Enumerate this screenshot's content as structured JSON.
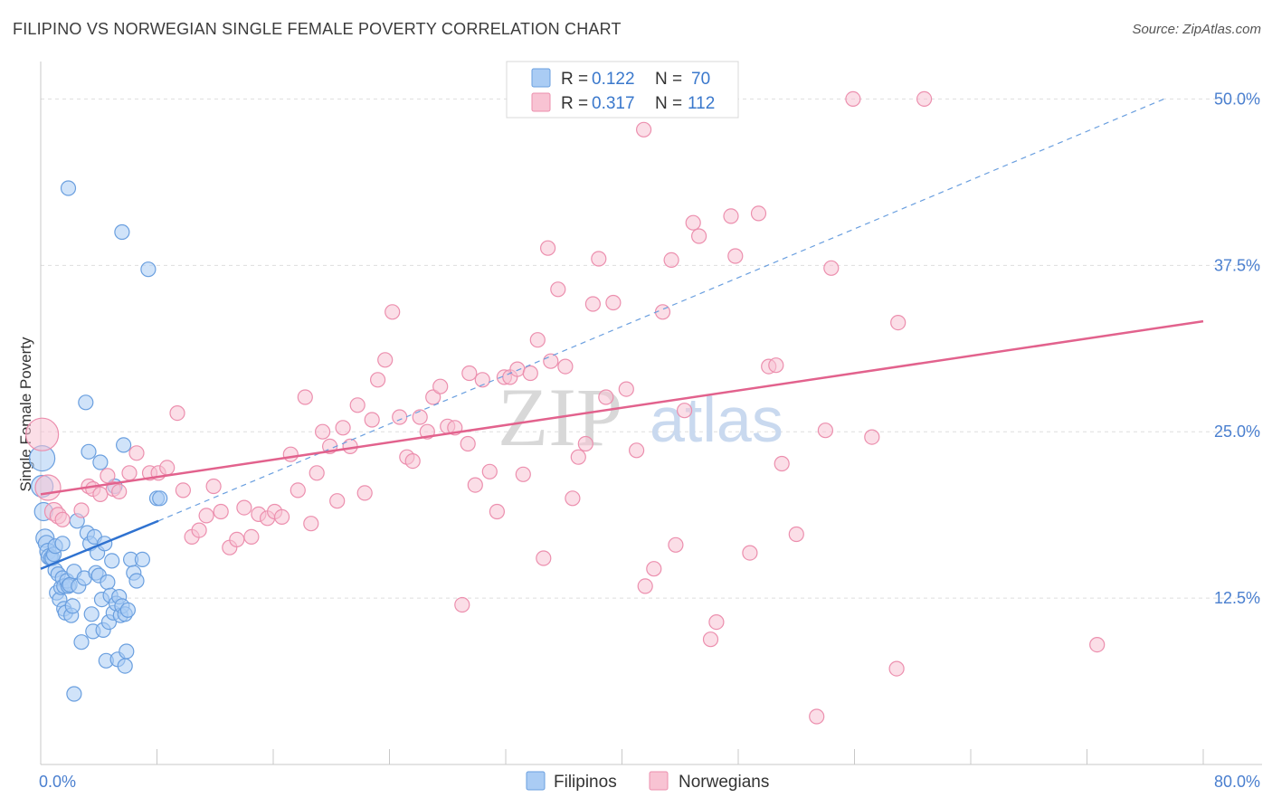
{
  "title": "FILIPINO VS NORWEGIAN SINGLE FEMALE POVERTY CORRELATION CHART",
  "source": "Source: ZipAtlas.com",
  "watermark": {
    "zip": "ZIP",
    "atlas": "atlas"
  },
  "legend": {
    "r_label": "R =",
    "n_label": "N =",
    "rows": [
      {
        "series": "Filipinos",
        "r": "0.122",
        "n": "70",
        "color": "#7aaae8"
      },
      {
        "series": "Norwegians",
        "r": "0.317",
        "n": "112",
        "color": "#f08aaa"
      }
    ]
  },
  "colors": {
    "filipinos_fill": "#aaccf4",
    "filipinos_stroke": "#6a9fdf",
    "filipinos_line": "#2f72d0",
    "norwegians_fill": "#f8c3d3",
    "norwegians_stroke": "#ec8fae",
    "norwegians_line": "#e2628d",
    "tick_text": "#4a7fcf"
  },
  "chart_data": {
    "type": "scatter",
    "title": "FILIPINO VS NORWEGIAN SINGLE FEMALE POVERTY CORRELATION CHART",
    "xlabel": "",
    "ylabel": "Single Female Poverty",
    "xlim": [
      0,
      80
    ],
    "ylim": [
      0,
      52
    ],
    "x_tick_labels": [
      {
        "value": 0,
        "label": "0.0%"
      },
      {
        "value": 80,
        "label": "80.0%"
      }
    ],
    "y_tick_labels": [
      {
        "value": 12.5,
        "label": "12.5%"
      },
      {
        "value": 25,
        "label": "25.0%"
      },
      {
        "value": 37.5,
        "label": "37.5%"
      },
      {
        "value": 50,
        "label": "50.0%"
      }
    ],
    "grid": "horizontal dashed",
    "legend_position": "top-center",
    "series": [
      {
        "name": "Filipinos",
        "r": 0.122,
        "n": 70,
        "trend": {
          "x": [
            0,
            8.1
          ],
          "y": [
            14.7,
            18.3
          ],
          "extended_dashed": {
            "x": [
              8.1,
              77.3
            ],
            "y": [
              18.3,
              50
            ]
          }
        },
        "points": [
          [
            0.1,
            20.9,
            12
          ],
          [
            0.1,
            23.0,
            14
          ],
          [
            0.2,
            19.0,
            10
          ],
          [
            0.3,
            17.0,
            10
          ],
          [
            0.4,
            16.6,
            9
          ],
          [
            0.5,
            16.0,
            9
          ],
          [
            0.6,
            15.6,
            9
          ],
          [
            0.7,
            15.5,
            8
          ],
          [
            0.8,
            15.5,
            8
          ],
          [
            0.9,
            15.8,
            8
          ],
          [
            1.0,
            16.4,
            8
          ],
          [
            1.0,
            14.6,
            8
          ],
          [
            1.1,
            12.9,
            8
          ],
          [
            1.2,
            14.3,
            8
          ],
          [
            1.3,
            12.4,
            8
          ],
          [
            1.4,
            13.3,
            8
          ],
          [
            1.5,
            14.0,
            8
          ],
          [
            1.5,
            16.6,
            8
          ],
          [
            1.6,
            11.7,
            8
          ],
          [
            1.6,
            13.4,
            8
          ],
          [
            1.7,
            11.4,
            8
          ],
          [
            1.8,
            13.8,
            8
          ],
          [
            1.9,
            13.4,
            8
          ],
          [
            2.0,
            13.5,
            8
          ],
          [
            2.1,
            11.2,
            8
          ],
          [
            2.2,
            11.9,
            8
          ],
          [
            2.3,
            14.5,
            8
          ],
          [
            2.5,
            18.3,
            8
          ],
          [
            2.6,
            13.4,
            8
          ],
          [
            2.8,
            9.2,
            8
          ],
          [
            3.0,
            14.0,
            8
          ],
          [
            3.1,
            27.2,
            8
          ],
          [
            3.2,
            17.4,
            8
          ],
          [
            3.3,
            23.5,
            8
          ],
          [
            3.4,
            16.6,
            8
          ],
          [
            3.5,
            11.3,
            8
          ],
          [
            3.6,
            10.0,
            8
          ],
          [
            3.7,
            17.1,
            8
          ],
          [
            3.8,
            14.4,
            8
          ],
          [
            3.9,
            15.9,
            8
          ],
          [
            4.0,
            14.2,
            8
          ],
          [
            4.1,
            22.7,
            8
          ],
          [
            4.2,
            12.4,
            8
          ],
          [
            4.3,
            10.1,
            8
          ],
          [
            4.4,
            16.6,
            8
          ],
          [
            4.5,
            7.8,
            8
          ],
          [
            4.6,
            13.7,
            8
          ],
          [
            4.7,
            10.7,
            8
          ],
          [
            4.8,
            12.7,
            8
          ],
          [
            4.9,
            15.3,
            8
          ],
          [
            5.0,
            11.4,
            8
          ],
          [
            5.1,
            20.9,
            8
          ],
          [
            5.2,
            12.1,
            8
          ],
          [
            5.3,
            7.9,
            8
          ],
          [
            5.4,
            12.6,
            8
          ],
          [
            5.5,
            11.2,
            8
          ],
          [
            5.6,
            11.9,
            8
          ],
          [
            5.7,
            24.0,
            8
          ],
          [
            5.8,
            11.3,
            8
          ],
          [
            5.9,
            8.5,
            8
          ],
          [
            6.0,
            11.6,
            8
          ],
          [
            6.2,
            15.4,
            8
          ],
          [
            6.4,
            14.4,
            8
          ],
          [
            6.6,
            13.8,
            8
          ],
          [
            7.0,
            15.4,
            8
          ],
          [
            7.4,
            37.2,
            8
          ],
          [
            8.0,
            20.0,
            8
          ],
          [
            8.2,
            20.0,
            8
          ],
          [
            5.8,
            7.4,
            8
          ],
          [
            2.3,
            5.3,
            8
          ],
          [
            1.9,
            43.3,
            8
          ],
          [
            5.6,
            40.0,
            8
          ]
        ]
      },
      {
        "name": "Norwegians",
        "r": 0.317,
        "n": 112,
        "trend": {
          "x": [
            0,
            80
          ],
          "y": [
            20.3,
            33.3
          ]
        },
        "points": [
          [
            0.1,
            24.8,
            18
          ],
          [
            0.5,
            20.8,
            14
          ],
          [
            0.9,
            19.0,
            10
          ],
          [
            1.2,
            18.7,
            9
          ],
          [
            1.5,
            18.4,
            8
          ],
          [
            2.8,
            19.1,
            8
          ],
          [
            3.3,
            20.9,
            8
          ],
          [
            3.6,
            20.7,
            8
          ],
          [
            4.1,
            20.3,
            8
          ],
          [
            4.6,
            21.7,
            8
          ],
          [
            5.0,
            20.7,
            8
          ],
          [
            5.4,
            20.5,
            8
          ],
          [
            6.1,
            21.9,
            8
          ],
          [
            6.6,
            23.4,
            8
          ],
          [
            7.5,
            21.9,
            8
          ],
          [
            8.1,
            21.9,
            8
          ],
          [
            8.7,
            22.3,
            8
          ],
          [
            9.4,
            26.4,
            8
          ],
          [
            9.8,
            20.6,
            8
          ],
          [
            10.4,
            17.1,
            8
          ],
          [
            10.9,
            17.6,
            8
          ],
          [
            11.4,
            18.7,
            8
          ],
          [
            11.9,
            20.9,
            8
          ],
          [
            12.4,
            19.0,
            8
          ],
          [
            13.0,
            16.3,
            8
          ],
          [
            13.5,
            16.9,
            8
          ],
          [
            14.0,
            19.3,
            8
          ],
          [
            14.5,
            17.1,
            8
          ],
          [
            15.0,
            18.8,
            8
          ],
          [
            15.6,
            18.5,
            8
          ],
          [
            16.1,
            19.0,
            8
          ],
          [
            16.6,
            18.6,
            8
          ],
          [
            17.2,
            23.3,
            8
          ],
          [
            17.7,
            20.6,
            8
          ],
          [
            18.2,
            27.6,
            8
          ],
          [
            18.6,
            18.1,
            8
          ],
          [
            19.0,
            21.9,
            8
          ],
          [
            19.4,
            25.0,
            8
          ],
          [
            19.9,
            23.9,
            8
          ],
          [
            20.4,
            19.8,
            8
          ],
          [
            20.8,
            25.3,
            8
          ],
          [
            21.3,
            23.9,
            8
          ],
          [
            21.8,
            27.0,
            8
          ],
          [
            22.3,
            20.4,
            8
          ],
          [
            22.8,
            25.9,
            8
          ],
          [
            23.2,
            28.9,
            8
          ],
          [
            23.7,
            30.4,
            8
          ],
          [
            24.2,
            34.0,
            8
          ],
          [
            24.7,
            26.1,
            8
          ],
          [
            25.2,
            23.1,
            8
          ],
          [
            25.6,
            22.8,
            8
          ],
          [
            26.1,
            26.1,
            8
          ],
          [
            26.6,
            25.0,
            8
          ],
          [
            27.0,
            27.6,
            8
          ],
          [
            27.5,
            28.4,
            8
          ],
          [
            28.0,
            25.4,
            8
          ],
          [
            28.5,
            25.3,
            8
          ],
          [
            29.0,
            12.0,
            8
          ],
          [
            29.4,
            24.1,
            8
          ],
          [
            29.9,
            21.0,
            8
          ],
          [
            30.4,
            28.9,
            8
          ],
          [
            30.9,
            22.0,
            8
          ],
          [
            31.4,
            19.0,
            8
          ],
          [
            31.9,
            29.1,
            8
          ],
          [
            32.3,
            29.1,
            8
          ],
          [
            32.8,
            29.7,
            8
          ],
          [
            33.2,
            21.8,
            8
          ],
          [
            33.7,
            29.4,
            8
          ],
          [
            34.2,
            31.9,
            8
          ],
          [
            34.6,
            15.5,
            8
          ],
          [
            35.1,
            30.3,
            8
          ],
          [
            35.6,
            35.7,
            8
          ],
          [
            36.1,
            29.9,
            8
          ],
          [
            36.6,
            20.0,
            8
          ],
          [
            37.0,
            23.1,
            8
          ],
          [
            37.5,
            24.1,
            8
          ],
          [
            38.0,
            34.6,
            8
          ],
          [
            38.4,
            38.0,
            8
          ],
          [
            38.9,
            27.6,
            8
          ],
          [
            39.4,
            34.7,
            8
          ],
          [
            40.3,
            28.2,
            8
          ],
          [
            41.0,
            23.6,
            8
          ],
          [
            41.6,
            13.4,
            8
          ],
          [
            42.2,
            14.7,
            8
          ],
          [
            42.8,
            34.0,
            8
          ],
          [
            43.4,
            37.9,
            8
          ],
          [
            43.7,
            16.5,
            8
          ],
          [
            44.3,
            26.6,
            8
          ],
          [
            44.9,
            40.7,
            8
          ],
          [
            45.3,
            39.7,
            8
          ],
          [
            46.1,
            9.4,
            8
          ],
          [
            46.5,
            10.7,
            8
          ],
          [
            47.5,
            41.2,
            8
          ],
          [
            47.8,
            38.2,
            8
          ],
          [
            48.8,
            15.9,
            8
          ],
          [
            49.4,
            41.4,
            8
          ],
          [
            50.1,
            29.9,
            8
          ],
          [
            50.6,
            30.0,
            8
          ],
          [
            51.0,
            22.6,
            8
          ],
          [
            52.0,
            17.3,
            8
          ],
          [
            53.4,
            3.6,
            8
          ],
          [
            54.0,
            25.1,
            8
          ],
          [
            54.4,
            37.3,
            8
          ],
          [
            55.9,
            50.0,
            8
          ],
          [
            57.2,
            24.6,
            8
          ],
          [
            58.9,
            7.2,
            8
          ],
          [
            59.0,
            33.2,
            8
          ],
          [
            60.8,
            50.0,
            8
          ],
          [
            72.7,
            9.0,
            8
          ],
          [
            41.5,
            47.7,
            8
          ],
          [
            34.9,
            38.8,
            8
          ],
          [
            29.5,
            29.4,
            8
          ]
        ]
      }
    ]
  }
}
